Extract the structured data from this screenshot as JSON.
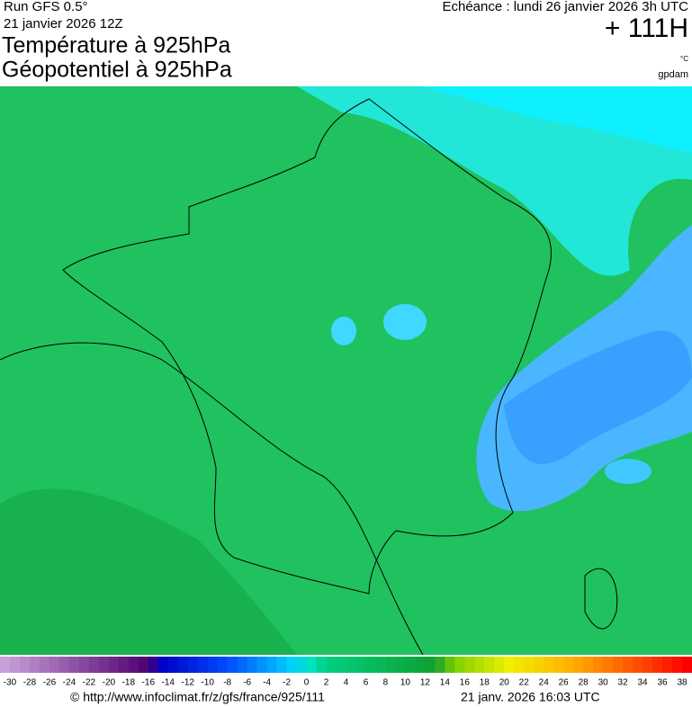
{
  "header": {
    "run": "Run GFS 0.5°",
    "date": "21 janvier 2026 12Z",
    "title1": "Température à 925hPa",
    "title2": "Géopotentiel à 925hPa",
    "echeance": "Echéance : lundi 26 janvier 2026 3h UTC",
    "lead": "+ 111H",
    "unit_temp": "°C",
    "unit_geo": "gpdam"
  },
  "scale": {
    "ticks": [
      -30,
      -28,
      -26,
      -24,
      -22,
      -20,
      -18,
      -16,
      -14,
      -12,
      -10,
      -8,
      -6,
      -4,
      -2,
      0,
      2,
      4,
      6,
      8,
      10,
      12,
      14,
      16,
      18,
      20,
      22,
      24,
      26,
      28,
      30,
      32,
      34,
      36,
      38
    ]
  },
  "footer": {
    "url": "© http://www.infoclimat.fr/z/gfs/france/925/111",
    "generated": "21 janv. 2026 16:03 UTC"
  }
}
